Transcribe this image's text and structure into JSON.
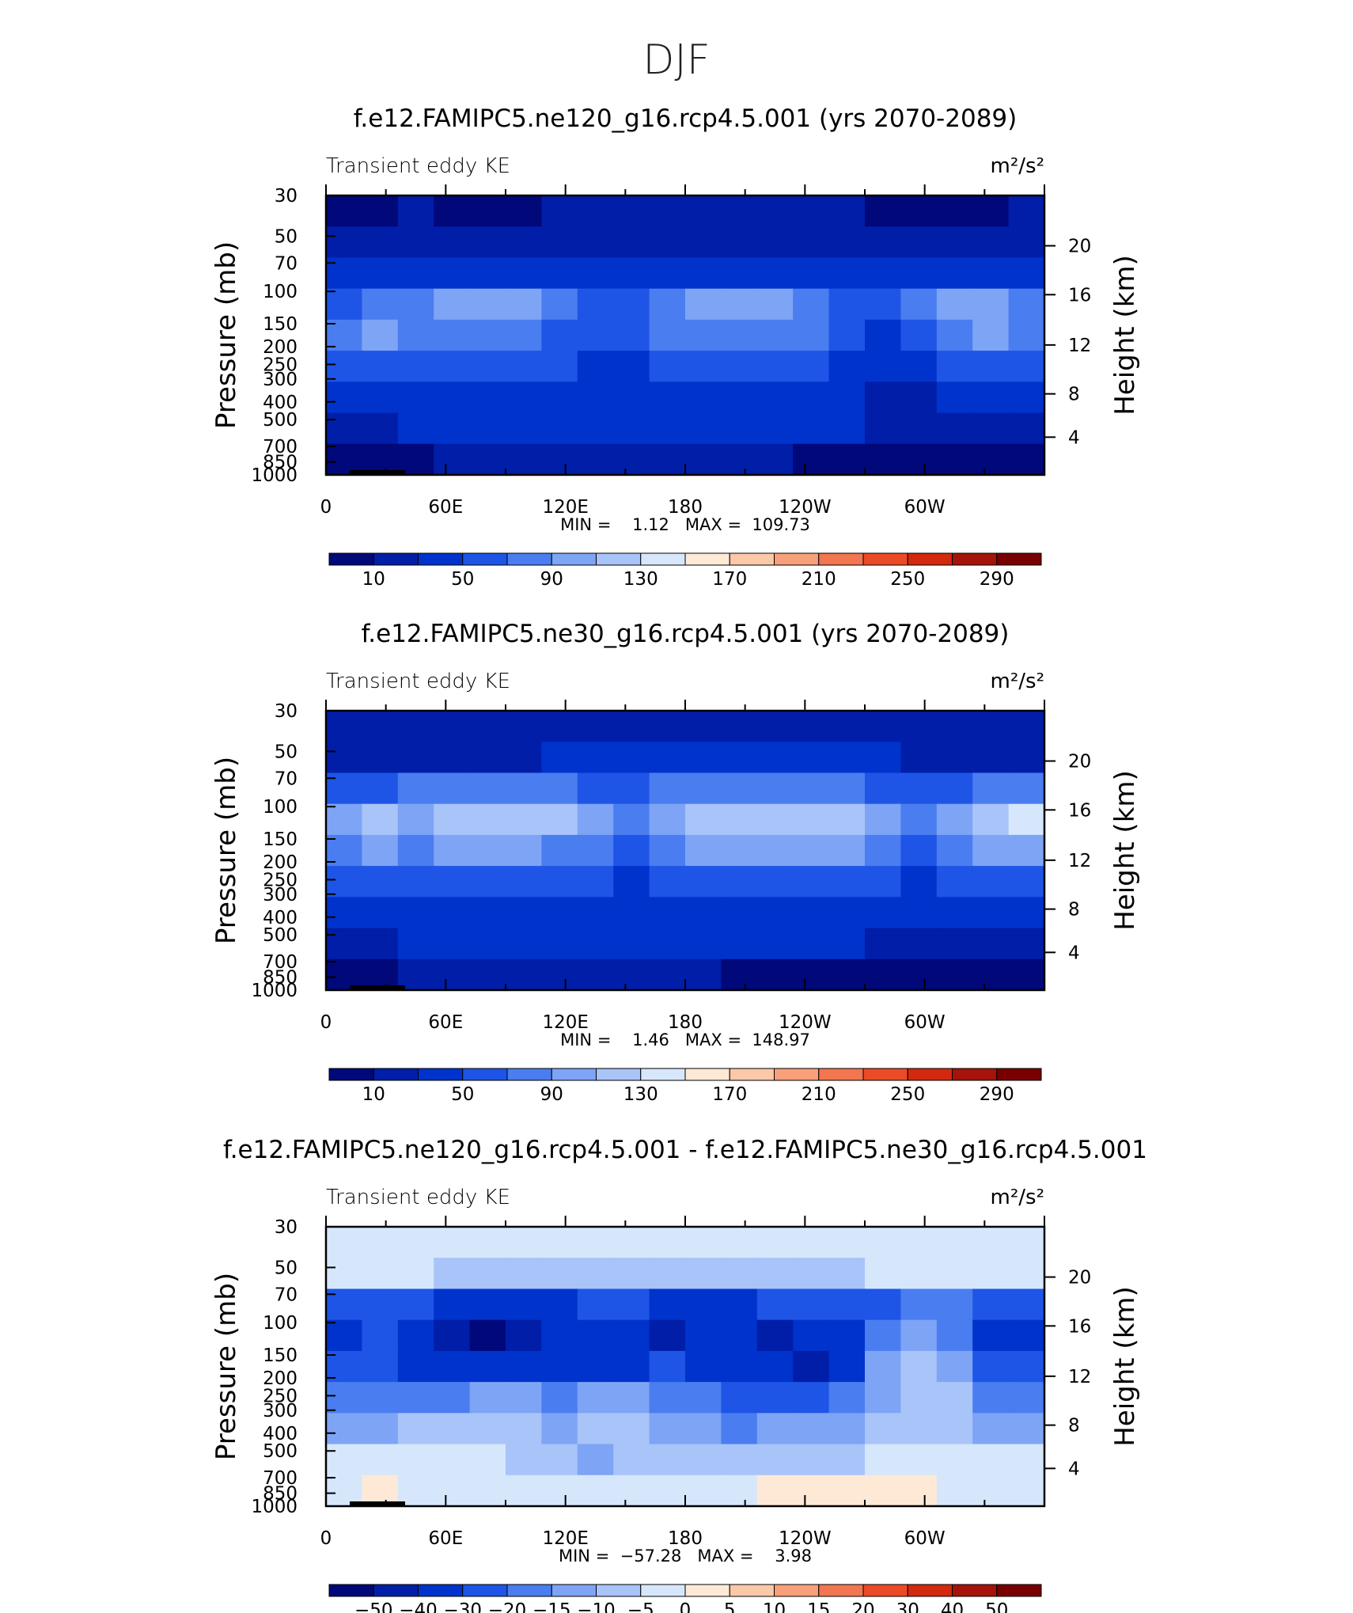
{
  "figure_title": "DJF",
  "chart_data": [
    {
      "type": "heatmap",
      "title": "f.e12.FAMIPC5.ne120_g16.rcp4.5.001 (yrs 2070-2089)",
      "left_label": "Transient eddy KE",
      "units": "m²/s²",
      "ylabel": "Pressure (mb)",
      "ylabel_right": "Height (km)",
      "x_ticks": [
        "0",
        "60E",
        "120E",
        "180",
        "120W",
        "60W"
      ],
      "y_ticks": [
        "30",
        "50",
        "70",
        "100",
        "150",
        "200",
        "250",
        "300",
        "400",
        "500",
        "700",
        "850",
        "1000"
      ],
      "y2_ticks": [
        "20",
        "16",
        "12",
        "8",
        "4"
      ],
      "min_max": "MIN =    1.12   MAX =  109.73",
      "colorbar_labels": [
        "10",
        "50",
        "90",
        "130",
        "170",
        "210",
        "250",
        "290"
      ],
      "colorbar_colors": [
        "#00087a",
        "#001ea8",
        "#0033cc",
        "#1e55e6",
        "#4a7df0",
        "#7ea4f5",
        "#a8c4f8",
        "#d6e7fc",
        "#fde9d6",
        "#fbc8a8",
        "#f7a07a",
        "#f2764f",
        "#eb4b26",
        "#d2290f",
        "#a5130a",
        "#780000"
      ],
      "field_rows": [
        [
          0,
          0,
          1,
          0,
          0,
          0,
          1,
          1,
          1,
          1,
          1,
          1,
          1,
          1,
          1,
          0,
          0,
          0,
          0,
          1
        ],
        [
          1,
          1,
          1,
          1,
          1,
          1,
          1,
          1,
          1,
          1,
          1,
          1,
          1,
          1,
          1,
          1,
          1,
          1,
          1,
          1
        ],
        [
          2,
          2,
          2,
          2,
          2,
          2,
          2,
          2,
          2,
          2,
          2,
          2,
          2,
          2,
          2,
          2,
          2,
          2,
          2,
          2
        ],
        [
          3,
          4,
          4,
          5,
          5,
          5,
          4,
          3,
          3,
          4,
          5,
          5,
          5,
          4,
          3,
          3,
          4,
          5,
          5,
          4
        ],
        [
          4,
          5,
          4,
          4,
          4,
          4,
          3,
          3,
          3,
          4,
          4,
          4,
          4,
          4,
          3,
          2,
          3,
          4,
          5,
          4
        ],
        [
          3,
          3,
          3,
          3,
          3,
          3,
          3,
          2,
          2,
          3,
          3,
          3,
          3,
          3,
          2,
          2,
          2,
          3,
          3,
          3
        ],
        [
          2,
          2,
          2,
          2,
          2,
          2,
          2,
          2,
          2,
          2,
          2,
          2,
          2,
          2,
          2,
          1,
          1,
          2,
          2,
          2
        ],
        [
          1,
          1,
          2,
          2,
          2,
          2,
          2,
          2,
          2,
          2,
          2,
          2,
          2,
          2,
          2,
          1,
          1,
          1,
          1,
          1
        ],
        [
          0,
          0,
          0,
          1,
          1,
          1,
          1,
          1,
          1,
          1,
          1,
          1,
          1,
          0,
          0,
          0,
          0,
          0,
          0,
          0
        ]
      ]
    },
    {
      "type": "heatmap",
      "title": "f.e12.FAMIPC5.ne30_g16.rcp4.5.001 (yrs 2070-2089)",
      "left_label": "Transient eddy KE",
      "units": "m²/s²",
      "ylabel": "Pressure (mb)",
      "ylabel_right": "Height (km)",
      "x_ticks": [
        "0",
        "60E",
        "120E",
        "180",
        "120W",
        "60W"
      ],
      "y_ticks": [
        "30",
        "50",
        "70",
        "100",
        "150",
        "200",
        "250",
        "300",
        "400",
        "500",
        "700",
        "850",
        "1000"
      ],
      "y2_ticks": [
        "20",
        "16",
        "12",
        "8",
        "4"
      ],
      "min_max": "MIN =    1.46   MAX =  148.97",
      "colorbar_labels": [
        "10",
        "50",
        "90",
        "130",
        "170",
        "210",
        "250",
        "290"
      ],
      "colorbar_colors": [
        "#00087a",
        "#001ea8",
        "#0033cc",
        "#1e55e6",
        "#4a7df0",
        "#7ea4f5",
        "#a8c4f8",
        "#d6e7fc",
        "#fde9d6",
        "#fbc8a8",
        "#f7a07a",
        "#f2764f",
        "#eb4b26",
        "#d2290f",
        "#a5130a",
        "#780000"
      ],
      "field_rows": [
        [
          1,
          1,
          1,
          1,
          1,
          1,
          1,
          1,
          1,
          1,
          1,
          1,
          1,
          1,
          1,
          1,
          1,
          1,
          1,
          1
        ],
        [
          1,
          1,
          1,
          1,
          1,
          1,
          2,
          2,
          2,
          2,
          2,
          2,
          2,
          2,
          2,
          2,
          1,
          1,
          1,
          1
        ],
        [
          3,
          3,
          4,
          4,
          4,
          4,
          4,
          3,
          3,
          4,
          4,
          4,
          4,
          4,
          4,
          3,
          3,
          3,
          4,
          4
        ],
        [
          5,
          6,
          5,
          6,
          6,
          6,
          6,
          5,
          4,
          5,
          6,
          6,
          6,
          6,
          6,
          5,
          4,
          5,
          6,
          7
        ],
        [
          4,
          5,
          4,
          5,
          5,
          5,
          4,
          4,
          3,
          4,
          5,
          5,
          5,
          5,
          5,
          4,
          3,
          4,
          5,
          5
        ],
        [
          3,
          3,
          3,
          3,
          3,
          3,
          3,
          3,
          2,
          3,
          3,
          3,
          3,
          3,
          3,
          3,
          2,
          3,
          3,
          3
        ],
        [
          2,
          2,
          2,
          2,
          2,
          2,
          2,
          2,
          2,
          2,
          2,
          2,
          2,
          2,
          2,
          2,
          2,
          2,
          2,
          2
        ],
        [
          1,
          1,
          2,
          2,
          2,
          2,
          2,
          2,
          2,
          2,
          2,
          2,
          2,
          2,
          2,
          1,
          1,
          1,
          1,
          1
        ],
        [
          0,
          0,
          1,
          1,
          1,
          1,
          1,
          1,
          1,
          1,
          1,
          0,
          0,
          0,
          0,
          0,
          0,
          0,
          0,
          0
        ]
      ]
    },
    {
      "type": "heatmap",
      "title": "f.e12.FAMIPC5.ne120_g16.rcp4.5.001 - f.e12.FAMIPC5.ne30_g16.rcp4.5.001",
      "left_label": "Transient eddy KE",
      "units": "m²/s²",
      "ylabel": "Pressure (mb)",
      "ylabel_right": "Height (km)",
      "x_ticks": [
        "0",
        "60E",
        "120E",
        "180",
        "120W",
        "60W"
      ],
      "y_ticks": [
        "30",
        "50",
        "70",
        "100",
        "150",
        "200",
        "250",
        "300",
        "400",
        "500",
        "700",
        "850",
        "1000"
      ],
      "y2_ticks": [
        "20",
        "16",
        "12",
        "8",
        "4"
      ],
      "min_max": "MIN =  −57.28   MAX =    3.98",
      "colorbar_labels": [
        "−50",
        "−40",
        "−30",
        "−20",
        "−15",
        "−10",
        "−5",
        "0",
        "5",
        "10",
        "15",
        "20",
        "30",
        "40",
        "50"
      ],
      "colorbar_colors": [
        "#00087a",
        "#001ea8",
        "#0033cc",
        "#1e55e6",
        "#4a7df0",
        "#7ea4f5",
        "#a8c4f8",
        "#d6e7fc",
        "#fde9d6",
        "#fbc8a8",
        "#f7a07a",
        "#f2764f",
        "#eb4b26",
        "#d2290f",
        "#a5130a",
        "#780000"
      ],
      "field_rows": [
        [
          7,
          7,
          7,
          7,
          7,
          7,
          7,
          7,
          7,
          7,
          7,
          7,
          7,
          7,
          7,
          7,
          7,
          7,
          7,
          7
        ],
        [
          7,
          7,
          7,
          6,
          6,
          6,
          6,
          6,
          6,
          6,
          6,
          6,
          6,
          6,
          6,
          7,
          7,
          7,
          7,
          7
        ],
        [
          3,
          3,
          3,
          2,
          2,
          2,
          2,
          3,
          3,
          2,
          2,
          2,
          3,
          3,
          3,
          3,
          4,
          4,
          3,
          3
        ],
        [
          2,
          3,
          2,
          1,
          0,
          1,
          2,
          2,
          2,
          1,
          2,
          2,
          1,
          2,
          2,
          4,
          5,
          4,
          2,
          2
        ],
        [
          3,
          3,
          2,
          2,
          2,
          2,
          2,
          2,
          2,
          3,
          2,
          2,
          2,
          1,
          2,
          5,
          6,
          5,
          3,
          3
        ],
        [
          4,
          4,
          4,
          4,
          5,
          5,
          4,
          5,
          5,
          4,
          4,
          3,
          3,
          3,
          4,
          5,
          6,
          6,
          4,
          4
        ],
        [
          5,
          5,
          6,
          6,
          6,
          6,
          5,
          6,
          6,
          5,
          5,
          4,
          5,
          5,
          5,
          6,
          6,
          6,
          5,
          5
        ],
        [
          7,
          7,
          7,
          7,
          7,
          6,
          6,
          5,
          6,
          6,
          6,
          6,
          6,
          6,
          6,
          7,
          7,
          7,
          7,
          7
        ],
        [
          7,
          8,
          7,
          7,
          7,
          7,
          7,
          7,
          7,
          7,
          7,
          7,
          8,
          8,
          8,
          8,
          8,
          7,
          7,
          7
        ]
      ]
    }
  ]
}
